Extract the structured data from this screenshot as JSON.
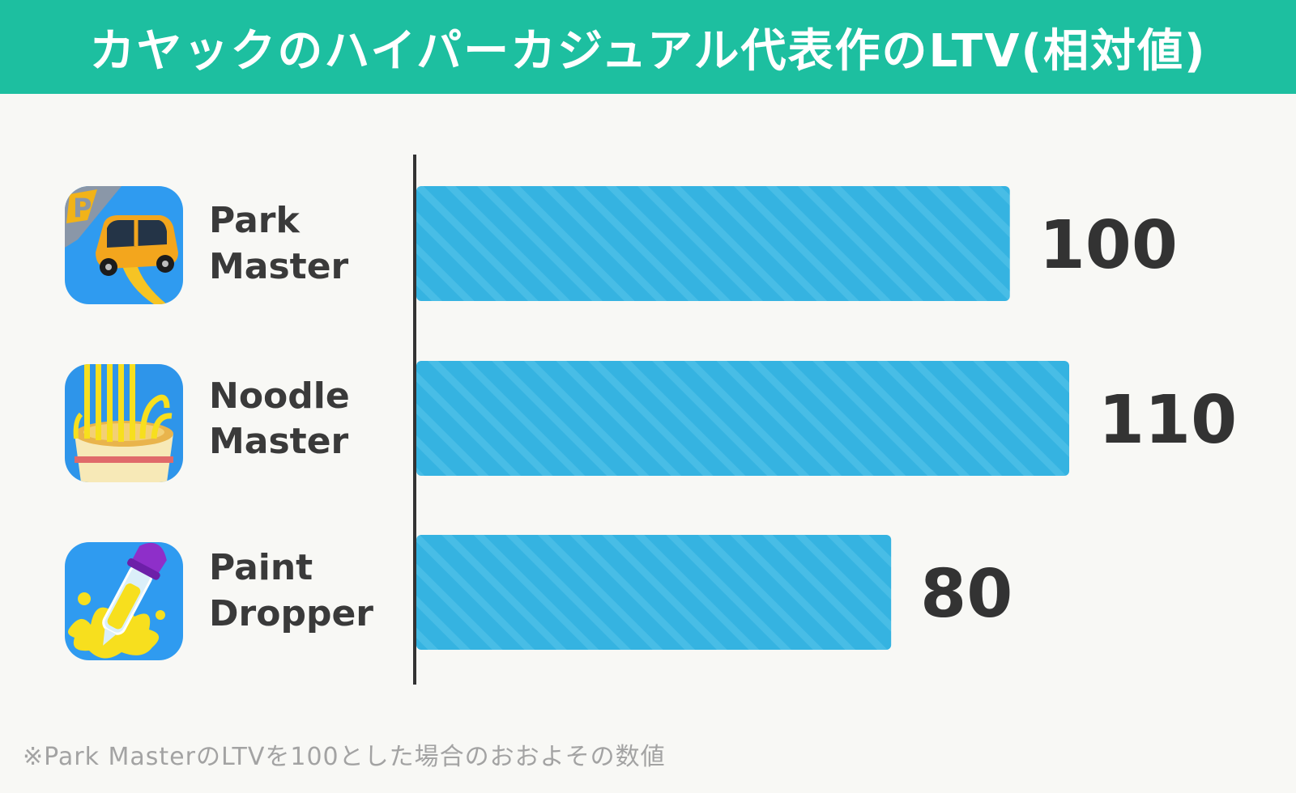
{
  "header": {
    "title": "カヤックのハイパーカジュアル代表作のLTV(相対値)"
  },
  "colors": {
    "header_bg": "#1dbfa0",
    "bar": "#35b3e1",
    "bar_stripe": "#4dbfe8"
  },
  "chart_data": {
    "type": "bar",
    "orientation": "horizontal",
    "title": "カヤックのハイパーカジュアル代表作のLTV(相対値)",
    "categories": [
      {
        "lines": [
          "Park",
          "Master"
        ],
        "icon": "car-parking-app-icon"
      },
      {
        "lines": [
          "Noodle",
          "Master"
        ],
        "icon": "noodle-cup-app-icon"
      },
      {
        "lines": [
          "Paint",
          "Dropper"
        ],
        "icon": "paint-dropper-app-icon"
      }
    ],
    "values": [
      100,
      110,
      80
    ],
    "value_labels": [
      "100",
      "110",
      "80"
    ],
    "xlim": [
      0,
      110
    ],
    "grid": false,
    "legend": "none"
  },
  "footnote": "※Park MasterのLTVを100とした場合のおおよその数値"
}
